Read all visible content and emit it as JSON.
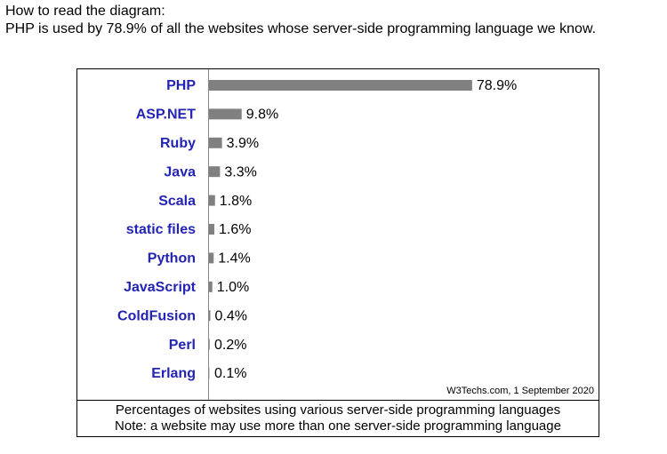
{
  "intro": [
    "How to read the diagram:",
    "PHP is used by 78.9% of all the websites whose server-side programming language we know."
  ],
  "chart_data": {
    "type": "bar",
    "orientation": "horizontal",
    "categories": [
      "PHP",
      "ASP.NET",
      "Ruby",
      "Java",
      "Scala",
      "static files",
      "Python",
      "JavaScript",
      "ColdFusion",
      "Perl",
      "Erlang"
    ],
    "values": [
      78.9,
      9.8,
      3.9,
      3.3,
      1.8,
      1.6,
      1.4,
      1.0,
      0.4,
      0.2,
      0.1
    ],
    "value_labels": [
      "78.9%",
      "9.8%",
      "3.9%",
      "3.3%",
      "1.8%",
      "1.6%",
      "1.4%",
      "1.0%",
      "0.4%",
      "0.2%",
      "0.1%"
    ],
    "color": "#808080",
    "category_color": "#2323b4",
    "xlim": [
      0,
      100
    ],
    "source": "W3Techs.com, 1 September 2020",
    "caption": [
      "Percentages of websites using various server-side programming languages",
      "Note: a website may use more than one server-side programming language"
    ]
  }
}
